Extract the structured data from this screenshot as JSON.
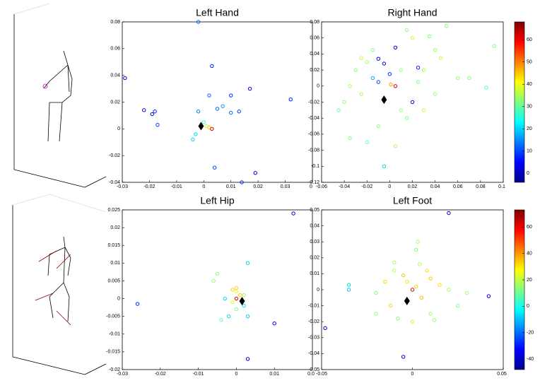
{
  "chart_data": [
    {
      "type": "scatter",
      "title": "Left Hand",
      "xlim": [
        -0.03,
        0.04
      ],
      "xticks": [
        -0.03,
        -0.02,
        -0.01,
        0,
        0.01,
        0.02,
        0.03,
        {
          "value": 0.04,
          "label": "0"
        }
      ],
      "ylim": [
        -0.04,
        0.08
      ],
      "yticks": [
        -0.04,
        -0.02,
        0,
        0.02,
        0.04,
        0.06,
        0.08
      ],
      "x": [
        -0.029,
        -0.022,
        -0.019,
        -0.018,
        -0.017,
        -0.002,
        0.003,
        0.002,
        -0.002,
        0.005,
        0.01,
        0.01,
        0.013,
        0.017,
        0.032,
        0.004,
        0.007,
        -0.004,
        -0.003,
        0.019,
        0.014,
        0,
        0.001,
        0.002,
        0.003
      ],
      "y": [
        0.038,
        0.014,
        0.011,
        0.013,
        0.003,
        0.08,
        0.047,
        0.025,
        0.013,
        0.015,
        0.025,
        0.012,
        0.013,
        0.03,
        0.022,
        -0.029,
        0.017,
        -0.008,
        -0.004,
        -0.033,
        -0.04,
        0.005,
        0.002,
        0.001,
        0
      ],
      "colors": [
        "#0000c8",
        "#0000e0",
        "#0000c8",
        "#0020ff",
        "#0040ff",
        "#0060ff",
        "#0020ff",
        "#0060ff",
        "#0080ff",
        "#0060ff",
        "#0020ff",
        "#0060ff",
        "#0040ff",
        "#0000c8",
        "#0020ff",
        "#0040ff",
        "#00a0ff",
        "#00d0ff",
        "#00e0e0",
        "#0000c8",
        "#0020ff",
        "#40ffc0",
        "#c0ff40",
        "#ffd000",
        "#d00000"
      ],
      "mean": {
        "x": -0.001,
        "y": 0.002
      }
    },
    {
      "type": "scatter",
      "title": "Right Hand",
      "xlim": [
        -0.06,
        0.1
      ],
      "xticks": [
        -0.06,
        -0.04,
        -0.02,
        0,
        0.02,
        0.04,
        0.06,
        0.08,
        0.1
      ],
      "ylim": [
        -0.12,
        0.08
      ],
      "yticks": [
        -0.12,
        -0.1,
        -0.08,
        -0.06,
        -0.04,
        -0.02,
        0,
        0.02,
        0.04,
        0.06,
        0.08
      ],
      "x": [
        -0.045,
        -0.04,
        -0.035,
        -0.03,
        -0.025,
        -0.02,
        -0.015,
        -0.01,
        -0.005,
        0,
        0.005,
        0.01,
        0.015,
        0.02,
        0.025,
        0.03,
        0.035,
        0.04,
        0.045,
        0.05,
        0.06,
        0.07,
        0.085,
        0.092,
        0.04,
        0.03,
        0.015,
        0.01,
        -0.01,
        -0.02,
        -0.035,
        -0.005,
        0.005,
        0.02,
        -0.01,
        -0.015,
        0.001,
        0.005,
        -0.025,
        0.025
      ],
      "y": [
        -0.03,
        -0.02,
        0,
        0.02,
        0.035,
        0.03,
        0.045,
        0.034,
        0.028,
        0.015,
        0.048,
        0.02,
        0.07,
        0.06,
        0.023,
        0.02,
        0.062,
        0.045,
        0.035,
        0.075,
        0.01,
        0.01,
        -0.002,
        0.05,
        -0.01,
        -0.03,
        -0.04,
        -0.03,
        -0.05,
        -0.07,
        -0.065,
        -0.1,
        -0.075,
        -0.02,
        0.005,
        0.01,
        0.002,
        0,
        -0.01,
        0.005
      ],
      "colors": [
        "#60ffa0",
        "#80ff80",
        "#a0ff60",
        "#80ff80",
        "#c0ff40",
        "#a0ff60",
        "#80ff80",
        "#0000c8",
        "#0000e0",
        "#0020ff",
        "#0000c8",
        "#a0ff60",
        "#80ff80",
        "#c0ff40",
        "#0020ff",
        "#a0ff60",
        "#80ff80",
        "#a0ff60",
        "#c0ff40",
        "#80ff80",
        "#a0ff60",
        "#80ff80",
        "#60ffa0",
        "#80ff80",
        "#a0ff60",
        "#c0ff40",
        "#80ff80",
        "#a0ff60",
        "#80ff80",
        "#60ffa0",
        "#80ff80",
        "#00e0e0",
        "#a0ff60",
        "#0000c8",
        "#0040ff",
        "#00a0ff",
        "#ffa000",
        "#d00000",
        "#a0ff60",
        "#80ff80"
      ],
      "mean": {
        "x": -0.005,
        "y": -0.017
      },
      "colorbar": {
        "lim": [
          -4,
          68
        ],
        "ticks": [
          0,
          10,
          20,
          30,
          40,
          50,
          60
        ]
      }
    },
    {
      "type": "scatter",
      "title": "Left Hip",
      "xlim": [
        -0.03,
        0.02
      ],
      "xticks": [
        -0.03,
        -0.02,
        -0.01,
        0,
        0.01,
        {
          "value": 0.02,
          "label": "0.0"
        }
      ],
      "ylim": [
        -0.02,
        0.025
      ],
      "yticks": [
        -0.02,
        -0.015,
        -0.01,
        -0.005,
        0,
        0.005,
        0.01,
        0.015,
        0.02,
        0.025
      ],
      "x": [
        -0.026,
        0.015,
        0.01,
        0.003,
        0.003,
        -0.005,
        -0.006,
        -0.004,
        -0.002,
        0,
        0,
        0.001,
        -0.001,
        0.002,
        -0.003,
        0.002,
        0,
        0.003,
        -0.001,
        0
      ],
      "y": [
        -0.0015,
        0.024,
        -0.007,
        -0.017,
        0.01,
        0.007,
        0.005,
        -0.006,
        -0.005,
        0.003,
        0.002,
        0.001,
        -0.001,
        -0.002,
        0,
        0.001,
        -0.003,
        -0.005,
        0.0025,
        0
      ],
      "colors": [
        "#0020ff",
        "#0000c8",
        "#0000e0",
        "#0000c8",
        "#00e0e0",
        "#80ff80",
        "#a0ff60",
        "#60ffa0",
        "#00e0e0",
        "#ffd000",
        "#e0ff20",
        "#ffd000",
        "#e0ff20",
        "#00e0e0",
        "#00e0e0",
        "#a0ff60",
        "#80ff80",
        "#00d0ff",
        "#ffd000",
        "#d00000"
      ],
      "mean": {
        "x": 0.0015,
        "y": -0.0007
      }
    },
    {
      "type": "scatter",
      "title": "Left Foot",
      "xlim": [
        -0.05,
        0.05
      ],
      "xticks": [
        -0.05,
        0,
        0.05
      ],
      "ylim": [
        -0.05,
        0.05
      ],
      "yticks": [
        -0.05,
        -0.04,
        -0.03,
        -0.02,
        -0.01,
        0,
        0.01,
        0.02,
        0.03,
        0.04,
        0.05
      ],
      "x": [
        -0.048,
        0.02,
        0.042,
        -0.005,
        -0.035,
        -0.035,
        0.003,
        0.002,
        0.004,
        -0.01,
        -0.01,
        -0.015,
        -0.02,
        0.01,
        0.015,
        0.02,
        0.025,
        0.01,
        0,
        -0.008,
        -0.012,
        0.005,
        -0.003,
        0.002,
        0.008,
        -0.005,
        0.012,
        -0.02,
        0.03,
        0
      ],
      "y": [
        -0.024,
        0.048,
        -0.004,
        -0.042,
        0.003,
        0,
        0.03,
        0.025,
        0.016,
        0.017,
        0.012,
        0.005,
        -0.002,
        0.007,
        0.003,
        0,
        -0.01,
        -0.015,
        -0.02,
        -0.018,
        -0.01,
        -0.005,
        0.005,
        0.002,
        0.012,
        0.009,
        -0.019,
        -0.015,
        -0.002,
        0
      ],
      "colors": [
        "#0000c8",
        "#0000c8",
        "#0000e0",
        "#0000c8",
        "#00e0e0",
        "#00c0ff",
        "#a0ff60",
        "#80ff80",
        "#c0ff40",
        "#a0ff60",
        "#c0ff40",
        "#ffd000",
        "#80ff80",
        "#ffd000",
        "#ffe000",
        "#a0ff60",
        "#80ff80",
        "#a0ff60",
        "#c0ff40",
        "#80ff80",
        "#ffd000",
        "#ffc000",
        "#ffe000",
        "#ffd000",
        "#ffe000",
        "#ffc000",
        "#a0ff60",
        "#80ff80",
        "#a0ff60",
        "#d00000"
      ],
      "mean": {
        "x": -0.003,
        "y": -0.007
      },
      "colorbar": {
        "lim": [
          -48,
          73
        ],
        "ticks": [
          -40,
          -20,
          0,
          20,
          40,
          60
        ]
      }
    }
  ]
}
